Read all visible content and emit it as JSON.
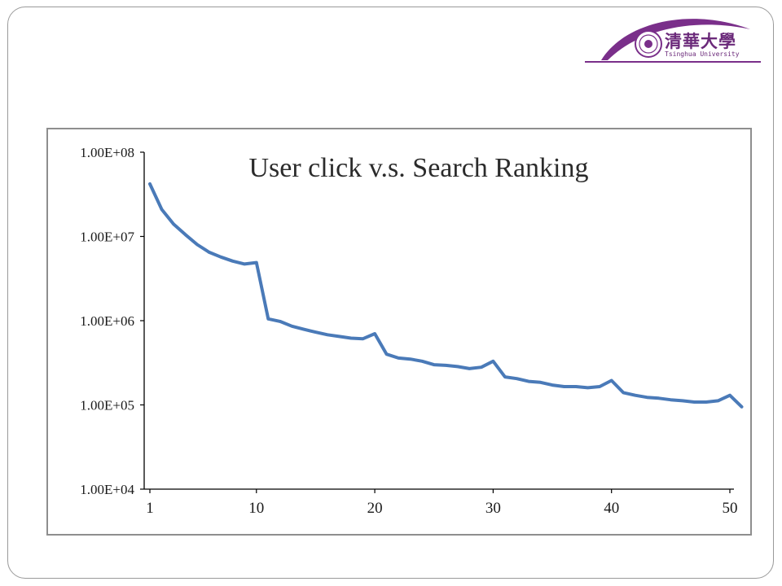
{
  "logo": {
    "name_cn": "清華大學",
    "name_en": "Tsinghua University",
    "accent_color": "#6b2a7a"
  },
  "chart_data": {
    "type": "line",
    "title": "User click v.s. Search Ranking",
    "xlabel": "",
    "ylabel": "",
    "y_scale": "log",
    "ylim": [
      10000,
      100000000
    ],
    "xlim": [
      1,
      50
    ],
    "grid": false,
    "legend": "none",
    "line_color": "#4a7ab8",
    "y_ticks": [
      {
        "value": 100000000,
        "label": "1.00E+08"
      },
      {
        "value": 10000000,
        "label": "1.00E+07"
      },
      {
        "value": 1000000,
        "label": "1.00E+06"
      },
      {
        "value": 100000,
        "label": "1.00E+05"
      },
      {
        "value": 10000,
        "label": "1.00E+04"
      }
    ],
    "x_ticks": [
      {
        "value": 1,
        "label": "1"
      },
      {
        "value": 10,
        "label": "10"
      },
      {
        "value": 20,
        "label": "20"
      },
      {
        "value": 30,
        "label": "30"
      },
      {
        "value": 40,
        "label": "40"
      },
      {
        "value": 50,
        "label": "50"
      }
    ],
    "series": [
      {
        "x": [
          1,
          2,
          3,
          4,
          5,
          6,
          7,
          8,
          9,
          10,
          11,
          12,
          13,
          14,
          15,
          16,
          17,
          18,
          19,
          20,
          21,
          22,
          23,
          24,
          25,
          26,
          27,
          28,
          29,
          30,
          31,
          32,
          33,
          34,
          35,
          36,
          37,
          38,
          39,
          40,
          41,
          42,
          43,
          44,
          45,
          46,
          47,
          48,
          49,
          50,
          51
        ],
        "values": [
          42000000,
          21000000,
          14000000,
          10500000,
          8000000,
          6500000,
          5700000,
          5100000,
          4700000,
          4900000,
          1050000,
          980000,
          860000,
          790000,
          730000,
          680000,
          650000,
          620000,
          610000,
          700000,
          400000,
          360000,
          350000,
          330000,
          300000,
          295000,
          285000,
          270000,
          280000,
          330000,
          215000,
          205000,
          190000,
          185000,
          172000,
          165000,
          165000,
          160000,
          165000,
          195000,
          140000,
          130000,
          123000,
          120000,
          115000,
          112000,
          108000,
          108000,
          112000,
          130000,
          95000
        ]
      }
    ]
  }
}
